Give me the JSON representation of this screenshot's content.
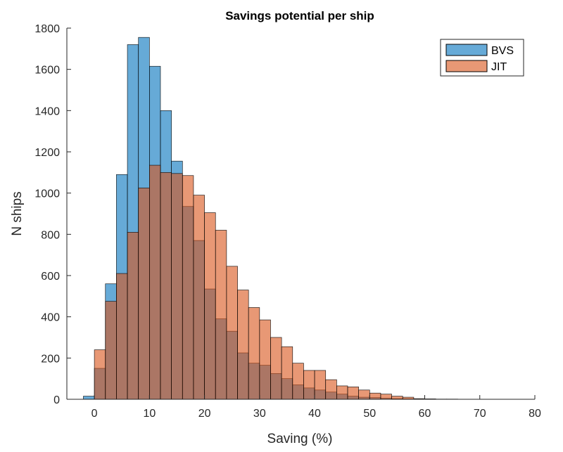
{
  "chart_data": {
    "type": "histogram",
    "title": "Savings potential per ship",
    "xlabel": "Saving (%)",
    "ylabel": "N ships",
    "xlim": [
      -5,
      80
    ],
    "ylim": [
      0,
      1800
    ],
    "xticks": [
      0,
      10,
      20,
      30,
      40,
      50,
      60,
      70,
      80
    ],
    "yticks": [
      0,
      200,
      400,
      600,
      800,
      1000,
      1200,
      1400,
      1600,
      1800
    ],
    "grid": false,
    "legend_position": "top-right",
    "bin_width": 2,
    "bin_start": -2,
    "series": [
      {
        "name": "BVS",
        "color": "#0072BD",
        "opacity": 0.6,
        "values": [
          15,
          150,
          560,
          1090,
          1720,
          1755,
          1615,
          1400,
          1155,
          935,
          770,
          535,
          390,
          330,
          225,
          175,
          165,
          125,
          100,
          70,
          55,
          45,
          35,
          25,
          15,
          10,
          8,
          5,
          3,
          2,
          1,
          1,
          0,
          0,
          0,
          0,
          0,
          0,
          0,
          0,
          0
        ]
      },
      {
        "name": "JIT",
        "color": "#D95319",
        "opacity": 0.6,
        "values": [
          0,
          240,
          475,
          610,
          810,
          1025,
          1135,
          1100,
          1095,
          1085,
          990,
          905,
          820,
          645,
          530,
          445,
          385,
          300,
          255,
          175,
          140,
          140,
          95,
          65,
          60,
          45,
          30,
          25,
          15,
          10,
          3,
          2,
          1,
          1,
          0,
          0,
          0,
          0,
          0,
          0,
          0
        ]
      }
    ]
  }
}
